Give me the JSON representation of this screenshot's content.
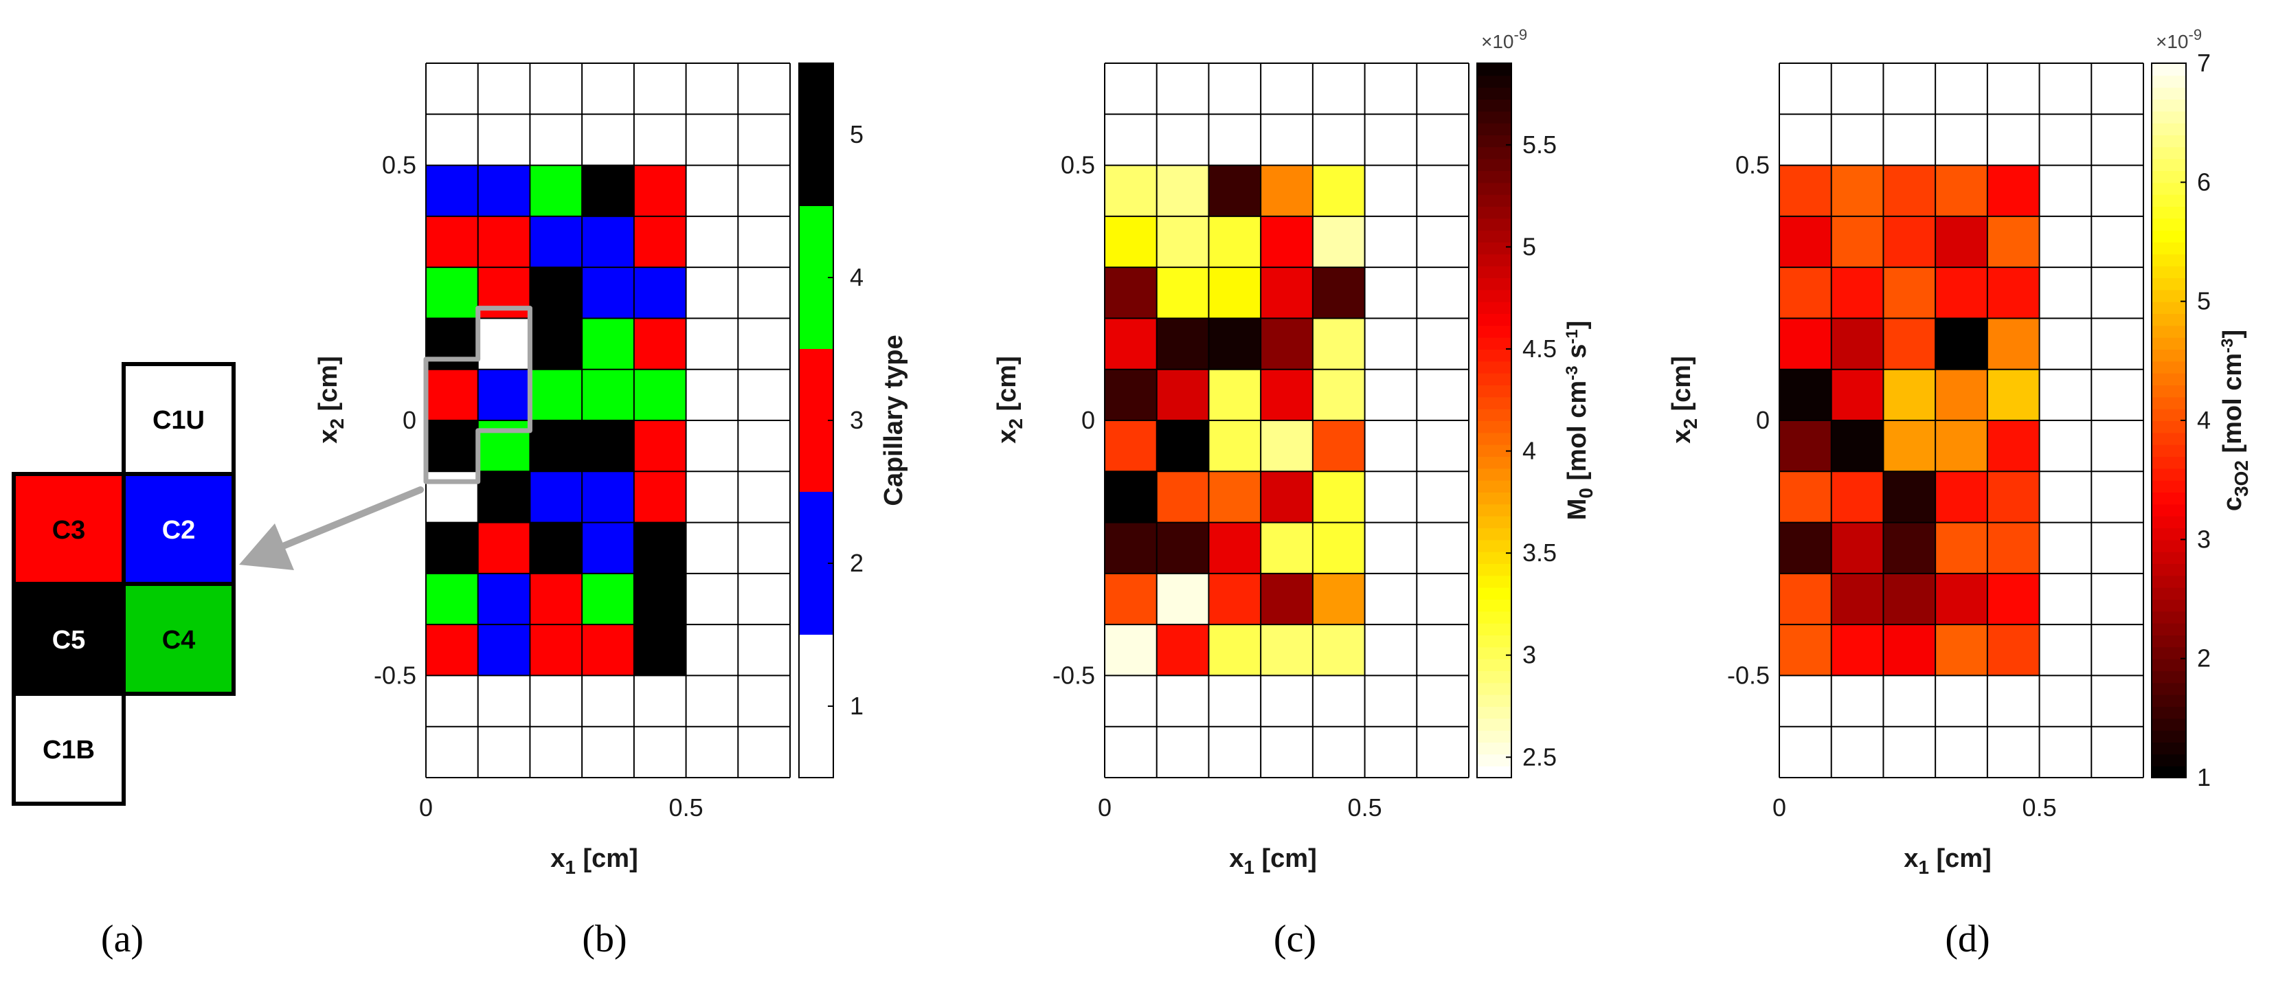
{
  "chart_data": [
    {
      "panel": "(a)",
      "type": "diagram",
      "description_cells": [
        {
          "label": "C1U",
          "color": "#ffffff",
          "text_color": "#000000"
        },
        {
          "label": "C3",
          "color": "#ff0000",
          "text_color": "#000000"
        },
        {
          "label": "C2",
          "color": "#0000ff",
          "text_color": "#ffffff"
        },
        {
          "label": "C5",
          "color": "#000000",
          "text_color": "#ffffff"
        },
        {
          "label": "C4",
          "color": "#00cc00",
          "text_color": "#000000"
        },
        {
          "label": "C1B",
          "color": "#ffffff",
          "text_color": "#000000"
        }
      ]
    },
    {
      "panel": "(b)",
      "type": "heatmap",
      "xlabel_main": "x",
      "xlabel_sub": "1",
      "xlabel_unit": " [cm]",
      "ylabel_main": "x",
      "ylabel_sub": "2",
      "ylabel_unit": " [cm]",
      "xticks": [
        {
          "value": 0,
          "label": "0"
        },
        {
          "value": 0.5,
          "label": "0.5"
        }
      ],
      "yticks": [
        {
          "value": 0.5,
          "label": "0.5"
        },
        {
          "value": 0,
          "label": "0"
        },
        {
          "value": -0.5,
          "label": "-0.5"
        }
      ],
      "xlim": [
        0,
        0.7
      ],
      "ylim": [
        -0.7,
        0.7
      ],
      "cell_size": 0.1,
      "colorbar": {
        "title": "Capillary type",
        "ticks": [
          "1",
          "2",
          "3",
          "4",
          "5"
        ],
        "range": [
          0.5,
          5.5
        ],
        "colors": [
          "#ffffff",
          "#0000ff",
          "#ff0000",
          "#00ff00",
          "#000000"
        ]
      },
      "legend_palette": {
        "1": "#ffffff",
        "2": "#0000ff",
        "3": "#ff0000",
        "4": "#00ff00",
        "5": "#000000"
      },
      "values": [
        [
          2,
          2,
          4,
          5,
          3
        ],
        [
          3,
          3,
          2,
          2,
          3
        ],
        [
          4,
          3,
          5,
          2,
          2
        ],
        [
          5,
          1,
          5,
          4,
          3
        ],
        [
          3,
          2,
          4,
          4,
          4
        ],
        [
          5,
          4,
          5,
          5,
          3
        ],
        [
          1,
          5,
          2,
          2,
          3
        ],
        [
          5,
          3,
          5,
          2,
          5
        ],
        [
          4,
          2,
          3,
          4,
          5
        ],
        [
          3,
          2,
          3,
          3,
          5
        ]
      ]
    },
    {
      "panel": "(c)",
      "type": "heatmap",
      "xlabel_main": "x",
      "xlabel_sub": "1",
      "xlabel_unit": " [cm]",
      "ylabel_main": "x",
      "ylabel_sub": "2",
      "ylabel_unit": " [cm]",
      "xticks": [
        {
          "value": 0,
          "label": "0"
        },
        {
          "value": 0.5,
          "label": "0.5"
        }
      ],
      "yticks": [
        {
          "value": 0.5,
          "label": "0.5"
        },
        {
          "value": 0,
          "label": "0"
        },
        {
          "value": -0.5,
          "label": "-0.5"
        }
      ],
      "xlim": [
        0,
        0.7
      ],
      "ylim": [
        -0.7,
        0.7
      ],
      "cell_size": 0.1,
      "colormap": "hot-reversed",
      "colorbar": {
        "exponent": "×10",
        "exponent_power": "-9",
        "title": "M0 [mol cm-3 s-1]",
        "ticks": [
          {
            "value": 2.5,
            "label": "2.5"
          },
          {
            "value": 3,
            "label": "3"
          },
          {
            "value": 3.5,
            "label": "3.5"
          },
          {
            "value": 4,
            "label": "4"
          },
          {
            "value": 4.5,
            "label": "4.5"
          },
          {
            "value": 5,
            "label": "5"
          },
          {
            "value": 5.5,
            "label": "5.5"
          }
        ],
        "range": [
          2.4,
          5.9
        ]
      },
      "values": [
        [
          2.9,
          2.8,
          5.6,
          3.9,
          3.1
        ],
        [
          3.3,
          2.9,
          3.1,
          4.6,
          2.7
        ],
        [
          5.3,
          3.2,
          3.3,
          4.7,
          5.5
        ],
        [
          4.7,
          5.7,
          5.8,
          5.2,
          2.9
        ],
        [
          5.6,
          4.8,
          3.0,
          4.7,
          2.9
        ],
        [
          4.3,
          6.0,
          3.0,
          2.8,
          4.2
        ],
        [
          5.9,
          4.2,
          4.1,
          4.8,
          3.1
        ],
        [
          5.6,
          5.6,
          4.7,
          3.0,
          3.1
        ],
        [
          4.2,
          2.5,
          4.4,
          5.1,
          3.8
        ],
        [
          2.5,
          4.5,
          3.0,
          2.9,
          2.9
        ]
      ]
    },
    {
      "panel": "(d)",
      "type": "heatmap",
      "xlabel_main": "x",
      "xlabel_sub": "1",
      "xlabel_unit": " [cm]",
      "ylabel_main": "x",
      "ylabel_sub": "2",
      "ylabel_unit": " [cm]",
      "xticks": [
        {
          "value": 0,
          "label": "0"
        },
        {
          "value": 0.5,
          "label": "0.5"
        }
      ],
      "yticks": [
        {
          "value": 0.5,
          "label": "0.5"
        },
        {
          "value": 0,
          "label": "0"
        },
        {
          "value": -0.5,
          "label": "-0.5"
        }
      ],
      "xlim": [
        0,
        0.7
      ],
      "ylim": [
        -0.7,
        0.7
      ],
      "cell_size": 0.1,
      "colormap": "hot",
      "colorbar": {
        "exponent": "×10",
        "exponent_power": "-9",
        "title": "c3O2 [mol cm-3]",
        "ticks": [
          {
            "value": 1,
            "label": "1"
          },
          {
            "value": 2,
            "label": "2"
          },
          {
            "value": 3,
            "label": "3"
          },
          {
            "value": 4,
            "label": "4"
          },
          {
            "value": 5,
            "label": "5"
          },
          {
            "value": 6,
            "label": "6"
          },
          {
            "value": 7,
            "label": "7"
          }
        ],
        "range": [
          1,
          7
        ]
      },
      "values": [
        [
          3.8,
          4.1,
          3.8,
          4.0,
          3.3
        ],
        [
          3.1,
          4.0,
          3.6,
          2.9,
          4.1
        ],
        [
          3.8,
          3.4,
          4.0,
          3.4,
          3.4
        ],
        [
          3.2,
          2.7,
          3.8,
          1.0,
          4.4
        ],
        [
          1.1,
          3.0,
          4.9,
          4.4,
          5.0
        ],
        [
          2.0,
          1.1,
          4.6,
          4.5,
          3.4
        ],
        [
          3.9,
          3.6,
          1.3,
          3.4,
          3.7
        ],
        [
          1.5,
          2.7,
          1.6,
          4.0,
          3.9
        ],
        [
          3.9,
          2.5,
          2.3,
          2.9,
          3.3
        ],
        [
          4.0,
          3.3,
          3.2,
          4.1,
          3.8
        ]
      ]
    }
  ],
  "labels": {
    "a": "(a)",
    "b": "(b)",
    "c": "(c)",
    "d": "(d)"
  },
  "colors": {
    "arrow": "#a6a6a6",
    "highlight": "#a6a6a6",
    "grid": "#000000"
  }
}
